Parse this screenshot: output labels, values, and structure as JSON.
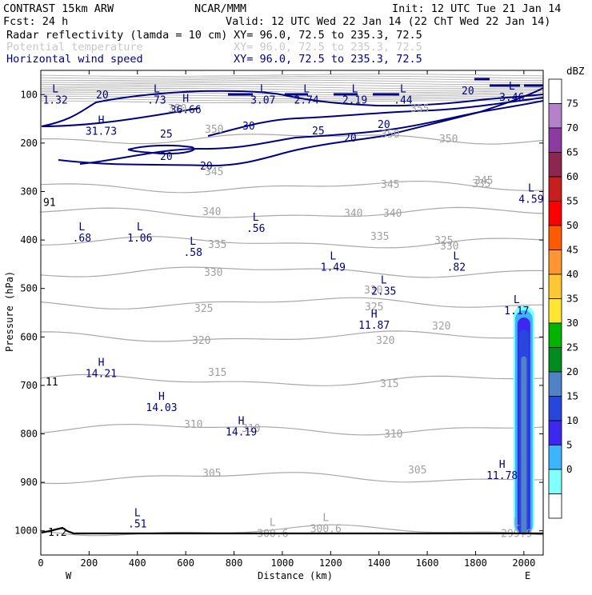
{
  "header": {
    "line1_left": "CONTRAST 15km ARW",
    "line1_center": "NCAR/MMM",
    "line1_right": "Init: 12 UTC Tue 21 Jan 14",
    "line2_left": "Fcst:   24 h",
    "line2_right": "Valid: 12 UTC Wed 22 Jan 14 (22 ChT Wed 22 Jan 14)",
    "fields": [
      {
        "name": "Radar reflectivity (lamda = 10 cm)",
        "xy": "XY=  96.0, 72.5 to 235.3, 72.5"
      },
      {
        "name": "Potential temperature",
        "xy": "XY=  96.0, 72.5 to 235.3, 72.5"
      },
      {
        "name": "Horizontal wind speed",
        "xy": "XY=  96.0, 72.5 to 235.3, 72.5"
      }
    ]
  },
  "colors": {
    "theta": "#a8a8a8",
    "wind": "#000080",
    "terrain": "#000000"
  },
  "chart_data": {
    "type": "contour",
    "xlabel": "Distance (km)",
    "ylabel": "Pressure (hPa)",
    "x_range": [
      0,
      2080
    ],
    "y_range_hPa": [
      1050,
      50
    ],
    "x_ticks": [
      "0",
      "200",
      "400",
      "600",
      "800",
      "1000",
      "1200",
      "1400",
      "1600",
      "1800",
      "2000"
    ],
    "y_ticks": [
      "100",
      "200",
      "300",
      "400",
      "500",
      "600",
      "700",
      "800",
      "900",
      "1000"
    ],
    "x_end_labels": {
      "left": "W",
      "right": "E"
    },
    "colorbar": {
      "unit": "dBZ",
      "levels": [
        "75",
        "70",
        "65",
        "60",
        "55",
        "50",
        "45",
        "40",
        "35",
        "30",
        "25",
        "20",
        "15",
        "10",
        "5",
        "0"
      ],
      "colors": [
        "#ffffff",
        "#b482c8",
        "#8c3ca0",
        "#8c2850",
        "#c81e1e",
        "#ff0000",
        "#ff5a00",
        "#ff9632",
        "#ffc832",
        "#ffe632",
        "#00b400",
        "#008c1e",
        "#5082c8",
        "#2846dc",
        "#3c28f0",
        "#3cb4ff",
        "#82ffff",
        "#ffffff"
      ]
    },
    "theta_contours": [
      {
        "value": 300,
        "pressure_hPa": 1000
      },
      {
        "value": 305,
        "pressure_hPa": 890
      },
      {
        "value": 310,
        "pressure_hPa": 790
      },
      {
        "value": 315,
        "pressure_hPa": 690
      },
      {
        "value": 320,
        "pressure_hPa": 600
      },
      {
        "value": 325,
        "pressure_hPa": 530
      },
      {
        "value": 330,
        "pressure_hPa": 465
      },
      {
        "value": 335,
        "pressure_hPa": 405
      },
      {
        "value": 340,
        "pressure_hPa": 345
      },
      {
        "value": 345,
        "pressure_hPa": 290
      },
      {
        "value": 350,
        "pressure_hPa": 190
      }
    ],
    "wind_contour_labels": [
      "20",
      "20",
      "30",
      "25",
      "25",
      "20",
      "20",
      "20",
      "20"
    ],
    "theta_contour_labels": [
      "305",
      "305",
      "310",
      "310",
      "310",
      "315",
      "315",
      "320",
      "320",
      "320",
      "325",
      "325",
      "325",
      "330",
      "330",
      "330",
      "335",
      "335",
      "335",
      "340",
      "340",
      "340",
      "345",
      "345",
      "345",
      "350",
      "350",
      "350",
      "350",
      "355"
    ],
    "extrema": [
      {
        "kind": "L",
        "value": "1.32",
        "x": 60,
        "p": 95,
        "field": "wind"
      },
      {
        "kind": "L",
        "value": ".73",
        "x": 480,
        "p": 95,
        "field": "wind"
      },
      {
        "kind": "H",
        "value": "36.66",
        "x": 600,
        "p": 115,
        "field": "wind"
      },
      {
        "kind": "L",
        "value": "3.07",
        "x": 920,
        "p": 95,
        "field": "wind"
      },
      {
        "kind": "L",
        "value": "2.74",
        "x": 1100,
        "p": 95,
        "field": "wind"
      },
      {
        "kind": "L",
        "value": "2.19",
        "x": 1300,
        "p": 95,
        "field": "wind"
      },
      {
        "kind": "L",
        "value": ".44",
        "x": 1500,
        "p": 95,
        "field": "wind"
      },
      {
        "kind": "L",
        "value": "3.46",
        "x": 1950,
        "p": 90,
        "field": "wind"
      },
      {
        "kind": "H",
        "value": "31.73",
        "x": 250,
        "p": 160,
        "field": "wind"
      },
      {
        "kind": "L",
        "value": "4.59",
        "x": 2030,
        "p": 300,
        "field": "wind"
      },
      {
        "kind": "L",
        "value": ".68",
        "x": 170,
        "p": 380,
        "field": "wind"
      },
      {
        "kind": "L",
        "value": "1.06",
        "x": 410,
        "p": 380,
        "field": "wind"
      },
      {
        "kind": "L",
        "value": ".56",
        "x": 890,
        "p": 360,
        "field": "wind"
      },
      {
        "kind": "L",
        "value": ".58",
        "x": 630,
        "p": 410,
        "field": "wind"
      },
      {
        "kind": "L",
        "value": "1.49",
        "x": 1210,
        "p": 440,
        "field": "wind"
      },
      {
        "kind": "L",
        "value": ".82",
        "x": 1720,
        "p": 440,
        "field": "wind"
      },
      {
        "kind": "L",
        "value": "2.35",
        "x": 1420,
        "p": 490,
        "field": "wind"
      },
      {
        "kind": "L",
        "value": "1.17",
        "x": 1970,
        "p": 530,
        "field": "wind"
      },
      {
        "kind": "H",
        "value": "11.87",
        "x": 1380,
        "p": 560,
        "field": "wind"
      },
      {
        "kind": "H",
        "value": "14.21",
        "x": 250,
        "p": 660,
        "field": "wind"
      },
      {
        "kind": "H",
        "value": "14.03",
        "x": 500,
        "p": 730,
        "field": "wind"
      },
      {
        "kind": "H",
        "value": "14.19",
        "x": 830,
        "p": 780,
        "field": "wind"
      },
      {
        "kind": "H",
        "value": "11.78",
        "x": 1910,
        "p": 870,
        "field": "wind"
      },
      {
        "kind": "L",
        "value": ".51",
        "x": 400,
        "p": 970,
        "field": "wind"
      },
      {
        "kind": "L",
        "value": "300.6",
        "x": 960,
        "p": 990,
        "field": "theta"
      },
      {
        "kind": "L",
        "value": "300.6",
        "x": 1180,
        "p": 980,
        "field": "theta"
      },
      {
        "kind": "L",
        "value": "299.9",
        "x": 1970,
        "p": 990,
        "field": "theta"
      }
    ],
    "edge_labels": [
      {
        "value": "91",
        "x": 10,
        "p": 330
      },
      {
        "value": "11",
        "x": 20,
        "p": 700
      },
      {
        "value": "1.2",
        "x": 30,
        "p": 1010
      }
    ]
  }
}
